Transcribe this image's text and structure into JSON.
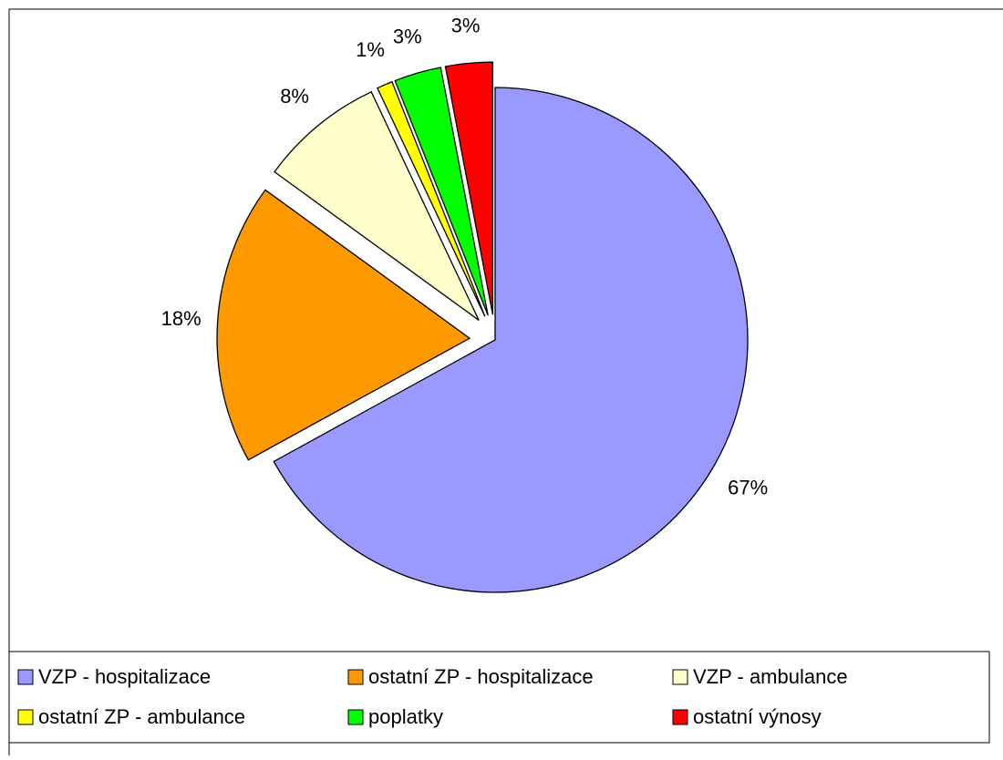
{
  "chart_data": {
    "type": "pie",
    "categories": [
      "VZP -  hospitalizace",
      "ostatní ZP - hospitalizace",
      "VZP -  ambulance",
      "ostatní ZP - ambulance",
      "poplatky",
      "ostatní výnosy"
    ],
    "values": [
      67,
      18,
      8,
      1,
      3,
      3
    ],
    "value_labels": [
      "67%",
      "18%",
      "8%",
      "1%",
      "3%",
      "3%"
    ],
    "colors": [
      "#9999ff",
      "#ff9900",
      "#ffffcc",
      "#ffff00",
      "#00ff00",
      "#ff0000"
    ],
    "legend": "bottom"
  }
}
